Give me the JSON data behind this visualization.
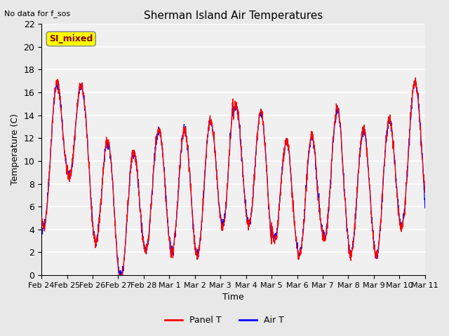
{
  "title": "Sherman Island Air Temperatures",
  "subtitle": "No data for f_sos",
  "xlabel": "Time",
  "ylabel": "Temperature (C)",
  "ylim": [
    0,
    22
  ],
  "yticks": [
    0,
    2,
    4,
    6,
    8,
    10,
    12,
    14,
    16,
    18,
    20,
    22
  ],
  "xtick_labels": [
    "Feb 24",
    "Feb 25",
    "Feb 26",
    "Feb 27",
    "Feb 28",
    "Mar 1",
    "Mar 2",
    "Mar 3",
    "Mar 4",
    "Mar 5",
    "Mar 6",
    "Mar 7",
    "Mar 8",
    "Mar 9",
    "Mar 10",
    "Mar 11"
  ],
  "panel_color": "red",
  "air_color": "blue",
  "legend_label": "SI_mixed",
  "bg_color": "#e8e8e8",
  "plot_bg": "#f0f0f0",
  "grid_color": "white",
  "n_points": 1680
}
